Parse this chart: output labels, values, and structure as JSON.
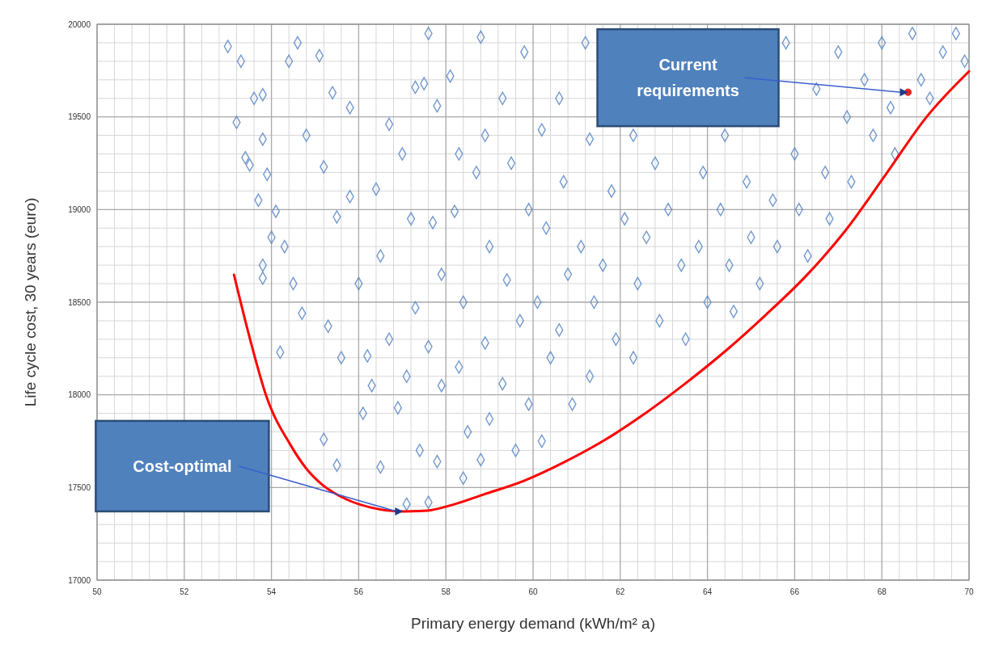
{
  "chart_data": {
    "type": "scatter",
    "xlabel": "Primary energy demand (kWh/m² a)",
    "ylabel": "Life cycle cost, 30 years (euro)",
    "xlim": [
      50,
      70
    ],
    "xticks": [
      50,
      52,
      54,
      56,
      58,
      60,
      62,
      64,
      66,
      68,
      70
    ],
    "ylim": [
      17000,
      20000
    ],
    "yticks": [
      17000,
      17500,
      18000,
      18500,
      19000,
      19500,
      20000
    ],
    "grid": true,
    "marker": "diamond",
    "series": [
      {
        "color": "#5b87c5",
        "x": [
          53.0,
          53.3,
          53.6,
          53.8,
          53.2,
          53.4,
          53.5,
          53.8,
          53.9,
          53.7,
          54.1,
          53.8,
          53.8,
          54.0,
          54.3,
          54.2,
          54.5,
          54.7,
          54.4,
          54.6,
          54.8,
          55.1,
          55.4,
          55.2,
          55.5,
          55.3,
          55.6,
          55.2,
          55.5,
          55.8,
          55.8,
          56.0,
          56.2,
          56.3,
          56.1,
          56.4,
          56.7,
          56.5,
          56.7,
          56.9,
          56.5,
          57.0,
          57.3,
          57.2,
          57.3,
          57.1,
          57.4,
          57.1,
          57.6,
          57.5,
          57.8,
          57.7,
          57.9,
          57.6,
          57.9,
          57.8,
          57.6,
          58.1,
          58.3,
          58.2,
          58.4,
          58.3,
          58.5,
          58.4,
          58.8,
          58.9,
          58.7,
          59.0,
          58.9,
          59.0,
          58.8,
          59.3,
          59.5,
          59.4,
          59.3,
          59.6,
          59.8,
          59.9,
          59.7,
          59.9,
          60.2,
          60.3,
          60.1,
          60.4,
          60.2,
          60.6,
          60.7,
          60.8,
          60.6,
          60.9,
          61.2,
          61.3,
          61.1,
          61.4,
          61.3,
          61.8,
          61.6,
          61.9,
          62.3,
          62.1,
          62.4,
          62.3,
          62.8,
          62.6,
          62.9,
          63.1,
          63.4,
          63.5,
          63.9,
          63.8,
          64.0,
          64.4,
          64.3,
          64.5,
          64.6,
          64.9,
          65.0,
          65.2,
          65.5,
          65.6,
          65.8,
          66.0,
          66.1,
          66.3,
          66.5,
          66.7,
          66.8,
          67.0,
          67.2,
          67.3,
          67.6,
          67.8,
          68.0,
          68.2,
          68.3,
          68.7,
          68.9,
          69.1,
          69.4,
          69.7,
          69.9
        ],
        "values": [
          19880,
          19800,
          19600,
          19620,
          19470,
          19280,
          19240,
          19380,
          19190,
          19050,
          18990,
          18700,
          18630,
          18850,
          18800,
          18230,
          18600,
          18440,
          19800,
          19900,
          19400,
          19830,
          19630,
          19230,
          18960,
          18370,
          18200,
          17760,
          17620,
          19550,
          19070,
          18600,
          18210,
          18050,
          17900,
          19110,
          19460,
          18750,
          18300,
          17930,
          17610,
          19300,
          19660,
          18950,
          18470,
          18100,
          17700,
          17410,
          19950,
          19680,
          19560,
          18930,
          18650,
          18260,
          18050,
          17640,
          17420,
          19720,
          19300,
          18990,
          18500,
          18150,
          17800,
          17550,
          19930,
          19400,
          19200,
          18800,
          18280,
          17870,
          17650,
          19600,
          19250,
          18620,
          18060,
          17700,
          19850,
          19000,
          18400,
          17950,
          19430,
          18900,
          18500,
          18200,
          17750,
          19600,
          19150,
          18650,
          18350,
          17950,
          19900,
          19380,
          18800,
          18500,
          18100,
          19100,
          18700,
          18300,
          19400,
          18950,
          18600,
          18200,
          19250,
          18850,
          18400,
          19000,
          18700,
          18300,
          19200,
          18800,
          18500,
          19400,
          19000,
          18700,
          18450,
          19150,
          18850,
          18600,
          19050,
          18800,
          19900,
          19300,
          19000,
          18750,
          19650,
          19200,
          18950,
          19850,
          19500,
          19150,
          19700,
          19400,
          19900,
          19550,
          19300,
          19950,
          19700,
          19600,
          19850,
          19950,
          19800
        ]
      },
      {
        "type": "line",
        "marker": "none",
        "line_style": "solid",
        "color": "#ff0000",
        "x": [
          53.14,
          53.51,
          53.88,
          54.43,
          54.8,
          55.17,
          55.72,
          56.28,
          57.02,
          57.57,
          58.13,
          58.86,
          59.79,
          60.71,
          61.63,
          62.56,
          63.48,
          64.4,
          65.33,
          66.25,
          67.17,
          68.1,
          69.02,
          70.0
        ],
        "values": [
          18648,
          18299,
          17994,
          17732,
          17602,
          17514,
          17436,
          17392,
          17371,
          17375,
          17405,
          17462,
          17536,
          17636,
          17754,
          17898,
          18059,
          18234,
          18430,
          18639,
          18888,
          19193,
          19498,
          19746
        ]
      },
      {
        "type": "scatter",
        "marker": "circle",
        "color": "#e8231e",
        "x": [
          68.6
        ],
        "values": [
          19633
        ]
      }
    ],
    "annotations": [
      {
        "text": "Cost-optimal",
        "x": 57.02,
        "y": 17371
      },
      {
        "text": "Current requirements",
        "x": 68.6,
        "y": 19633
      }
    ]
  }
}
